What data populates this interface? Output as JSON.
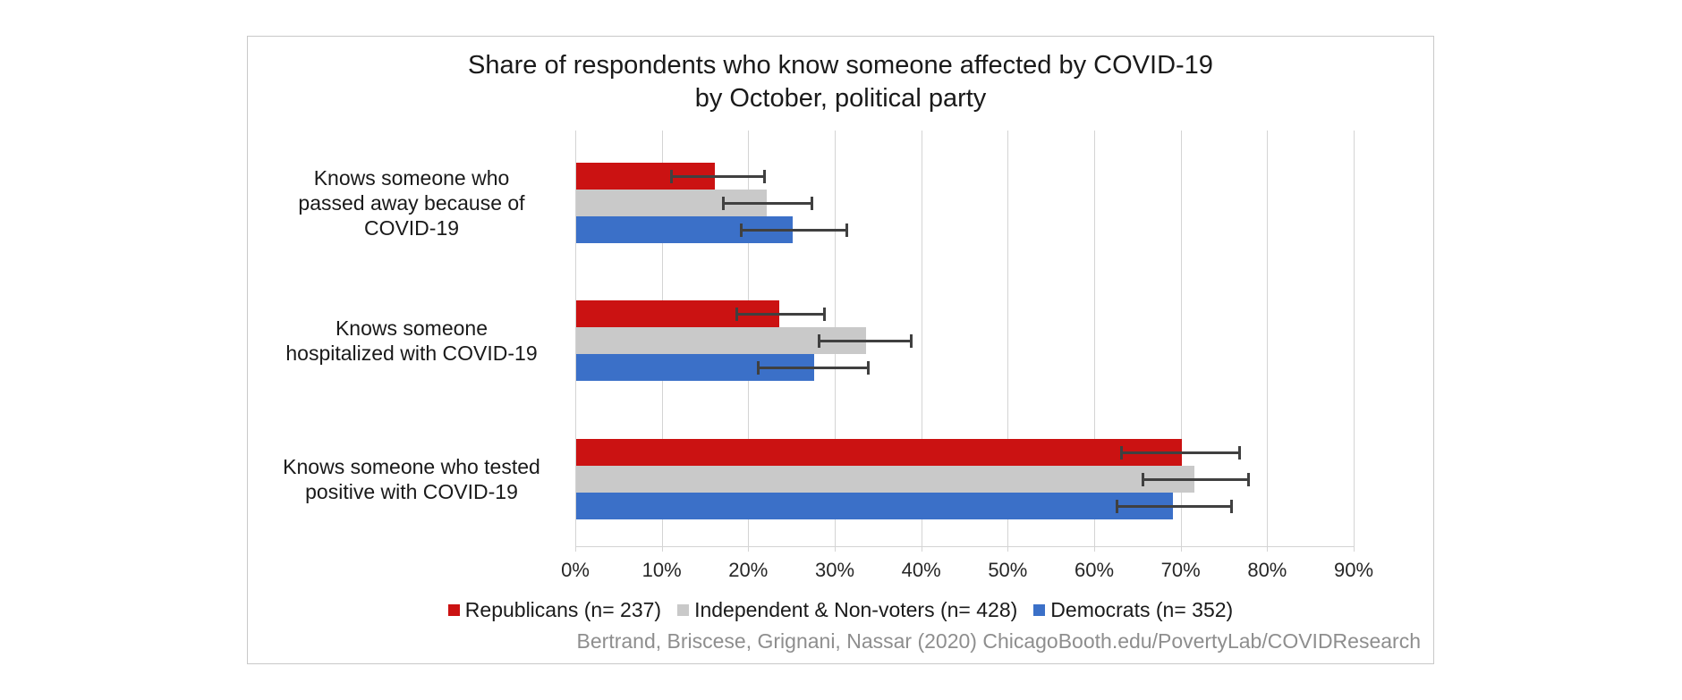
{
  "title": {
    "line1": "Share of respondents who know someone affected by COVID-19",
    "line2": "by October, political party"
  },
  "source": "Bertrand, Briscese, Grignani, Nassar (2020) ChicagoBooth.edu/PovertyLab/COVIDResearch",
  "colors": {
    "republicans": "#cb1212",
    "independent": "#c9c9c9",
    "democrats": "#3b70c8",
    "error_bar": "#404040",
    "gridline": "#d4d4d4",
    "source_text": "#8e8e8e"
  },
  "chart_data": {
    "type": "bar",
    "orientation": "horizontal",
    "title": "Share of respondents who know someone affected by COVID-19 by October, political party",
    "grid": true,
    "legend_position": "bottom",
    "xlim": [
      0,
      90
    ],
    "x_tick_labels": [
      "0%",
      "10%",
      "20%",
      "30%",
      "40%",
      "50%",
      "60%",
      "70%",
      "80%",
      "90%"
    ],
    "x_tick_values": [
      0,
      10,
      20,
      30,
      40,
      50,
      60,
      70,
      80,
      90
    ],
    "categories": [
      "Knows someone who passed away because of COVID-19",
      "Knows someone hospitalized with COVID-19",
      "Knows someone who tested positive with COVID-19"
    ],
    "category_label_lines": [
      [
        "Knows someone who",
        "passed away because of",
        "COVID-19"
      ],
      [
        "Knows someone",
        "hospitalized with COVID-19"
      ],
      [
        "Knows someone who tested",
        "positive with COVID-19"
      ]
    ],
    "series": [
      {
        "key": "republicans",
        "name": "Republicans (n= 237)",
        "color": "#cb1212",
        "values": [
          16,
          23.5,
          70
        ],
        "error_low": [
          11,
          18.5,
          63
        ],
        "error_high": [
          22,
          29,
          77
        ]
      },
      {
        "key": "independent",
        "name": "Independent & Non-voters (n= 428)",
        "color": "#c9c9c9",
        "values": [
          22,
          33.5,
          71.5
        ],
        "error_low": [
          17,
          28,
          65.5
        ],
        "error_high": [
          27.5,
          39,
          78
        ]
      },
      {
        "key": "democrats",
        "name": "Democrats (n= 352)",
        "color": "#3b70c8",
        "values": [
          25,
          27.5,
          69
        ],
        "error_low": [
          19,
          21,
          62.5
        ],
        "error_high": [
          31.5,
          34,
          76
        ]
      }
    ]
  }
}
